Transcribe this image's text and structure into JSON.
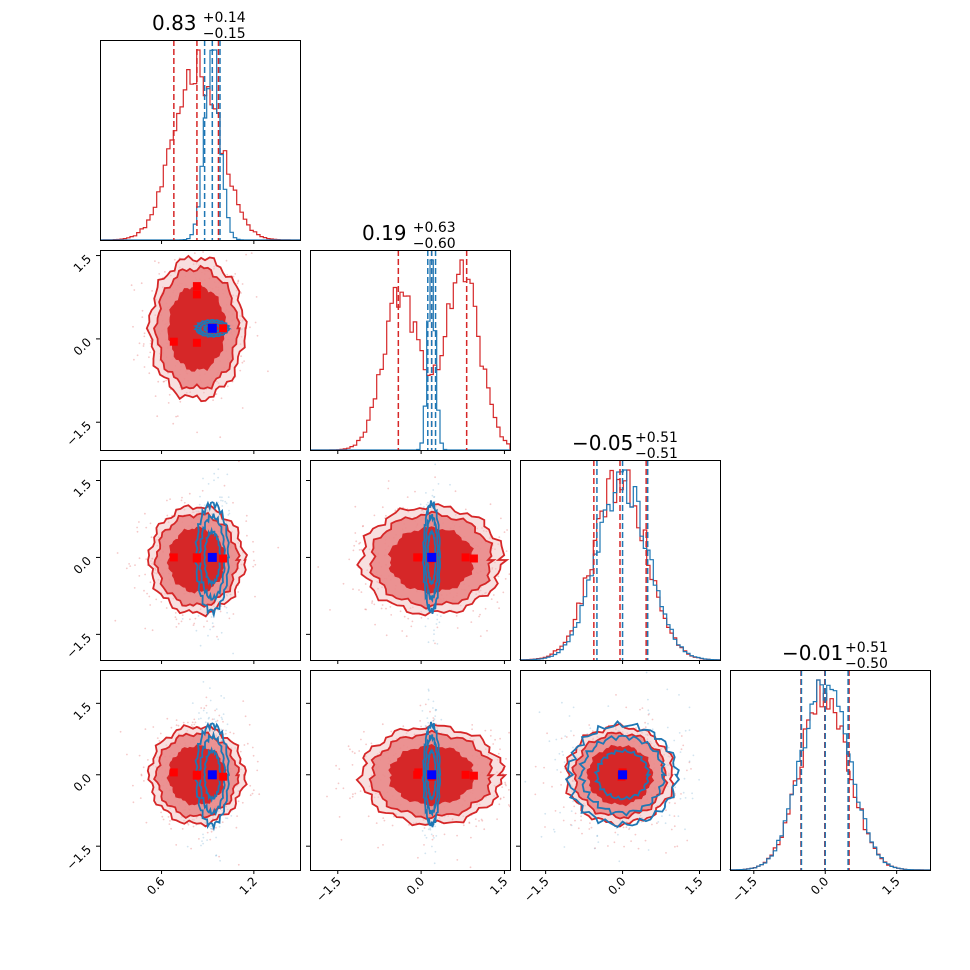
{
  "chart_data": {
    "type": "corner",
    "parameters": [
      "p0",
      "p1",
      "p2",
      "p3"
    ],
    "colors": {
      "broad": "#d62728",
      "narrow": "#1f77b4",
      "marker_red": "#ff0000",
      "marker_blue": "#0000ff"
    },
    "titles": [
      {
        "value": "0.83",
        "plus": "+0.14",
        "minus": "−0.15"
      },
      {
        "value": "0.19",
        "plus": "+0.63",
        "minus": "−0.60"
      },
      {
        "value": "−0.05",
        "plus": "+0.51",
        "minus": "−0.51"
      },
      {
        "value": "−0.01",
        "plus": "+0.51",
        "minus": "−0.50"
      }
    ],
    "ranges": [
      [
        0.2,
        1.5
      ],
      [
        -2.0,
        1.6
      ],
      [
        -2.0,
        1.9
      ],
      [
        -2.0,
        2.2
      ]
    ],
    "ticks": [
      {
        "values": [
          0.6,
          1.2
        ],
        "labels": [
          "0.6",
          "1.2"
        ]
      },
      {
        "values": [
          -1.5,
          0.0,
          1.5
        ],
        "labels": [
          "−1.5",
          "0.0",
          "1.5"
        ]
      },
      {
        "values": [
          -1.5,
          0.0,
          1.5
        ],
        "labels": [
          "−1.5",
          "0.0",
          "1.5"
        ]
      },
      {
        "values": [
          -1.5,
          0.0,
          1.5
        ],
        "labels": [
          "−1.5",
          "0.0",
          "1.5"
        ]
      }
    ],
    "broad": {
      "means": [
        0.83,
        0.19,
        -0.05,
        -0.01
      ],
      "sigmas": [
        0.15,
        0.62,
        0.51,
        0.5
      ],
      "quantiles": [
        [
          0.68,
          0.83,
          0.97
        ],
        [
          -0.41,
          0.19,
          0.82
        ],
        [
          -0.56,
          -0.05,
          0.46
        ],
        [
          -0.51,
          -0.01,
          0.5
        ]
      ]
    },
    "narrow": {
      "means": [
        0.93,
        0.19,
        0.0,
        0.0
      ],
      "sigmas": [
        0.05,
        0.07,
        0.5,
        0.5
      ],
      "quantiles": [
        [
          0.88,
          0.93,
          0.98
        ],
        [
          0.12,
          0.19,
          0.26
        ],
        [
          -0.5,
          0.0,
          0.49
        ],
        [
          -0.5,
          0.0,
          0.48
        ]
      ]
    },
    "markers_red": [
      [
        0.68,
        -0.05,
        0.0,
        0.05
      ],
      [
        0.83,
        0.95,
        -0.02,
        -0.02
      ],
      [
        0.83,
        -0.07,
        0.0,
        0.0
      ],
      [
        1.0,
        0.19,
        -0.02,
        -0.04
      ],
      [
        0.83,
        0.8,
        0.0,
        0.0
      ]
    ],
    "marker_blue": [
      0.93,
      0.19,
      0.0,
      0.0
    ]
  }
}
